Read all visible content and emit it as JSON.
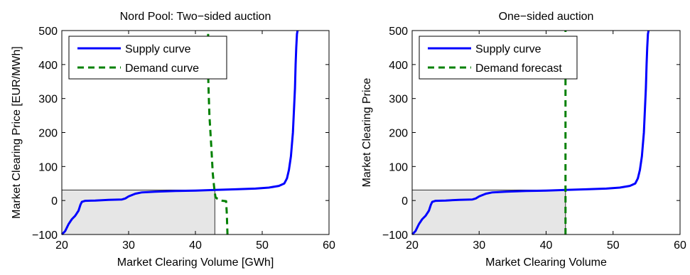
{
  "chart_data": [
    {
      "type": "line",
      "title": "Nord Pool: Two−sided auction",
      "xlabel": "Market Clearing Volume [GWh]",
      "ylabel": "Market Clearing Price [EUR/MWh]",
      "xlim": [
        20,
        60
      ],
      "ylim": [
        -100,
        500
      ],
      "xticks": [
        20,
        30,
        40,
        50,
        60
      ],
      "yticks": [
        -100,
        0,
        100,
        200,
        300,
        400,
        500
      ],
      "xtick_labels": [
        "20",
        "30",
        "40",
        "50",
        "60"
      ],
      "ytick_labels": [
        "−100",
        "0",
        "100",
        "200",
        "300",
        "400",
        "500"
      ],
      "legend_position": "top-left",
      "grid": false,
      "clearing_point": {
        "volume": 42.9,
        "price": 31
      },
      "series": [
        {
          "name": "Supply curve",
          "color": "#0000ff",
          "style": "solid",
          "x": [
            20.0,
            20.5,
            21.0,
            21.5,
            22.0,
            22.5,
            22.8,
            23.0,
            23.5,
            25.0,
            27.0,
            29.0,
            29.5,
            30.0,
            31.0,
            32.0,
            34.0,
            37.0,
            40.0,
            43.0,
            46.0,
            49.0,
            51.0,
            52.5,
            53.3,
            53.7,
            54.0,
            54.3,
            54.6,
            54.9,
            55.0,
            55.1,
            55.2,
            55.3
          ],
          "y": [
            -100,
            -90,
            -70,
            -55,
            -45,
            -30,
            -12,
            -4,
            -1,
            0,
            2,
            3,
            6,
            12,
            20,
            24,
            26,
            28,
            29,
            31,
            33,
            35,
            38,
            43,
            50,
            65,
            90,
            130,
            200,
            330,
            400,
            450,
            490,
            500
          ]
        },
        {
          "name": "Demand curve",
          "color": "#008000",
          "style": "dashed",
          "x": [
            41.9,
            41.9,
            41.95,
            42.1,
            42.4,
            42.6,
            42.8,
            43.0,
            43.3,
            43.8,
            44.6,
            44.7,
            44.8
          ],
          "y": [
            490,
            380,
            340,
            250,
            150,
            80,
            40,
            10,
            5,
            0,
            -2,
            -40,
            -100
          ]
        }
      ]
    },
    {
      "type": "line",
      "title": "One−sided auction",
      "xlabel": "Market Clearing Volume",
      "ylabel": "Market Clearing Price",
      "xlim": [
        20,
        60
      ],
      "ylim": [
        -100,
        500
      ],
      "xticks": [
        20,
        30,
        40,
        50,
        60
      ],
      "yticks": [
        -100,
        0,
        100,
        200,
        300,
        400,
        500
      ],
      "xtick_labels": [
        "20",
        "30",
        "40",
        "50",
        "60"
      ],
      "ytick_labels": [
        "−100",
        "0",
        "100",
        "200",
        "300",
        "400",
        "500"
      ],
      "legend_position": "top-left",
      "grid": false,
      "clearing_point": {
        "volume": 42.9,
        "price": 31
      },
      "series": [
        {
          "name": "Supply curve",
          "color": "#0000ff",
          "style": "solid",
          "x": [
            20.0,
            20.5,
            21.0,
            21.5,
            22.0,
            22.5,
            22.8,
            23.0,
            23.5,
            25.0,
            27.0,
            29.0,
            29.5,
            30.0,
            31.0,
            32.0,
            34.0,
            37.0,
            40.0,
            43.0,
            46.0,
            49.0,
            51.0,
            52.5,
            53.3,
            53.7,
            54.0,
            54.3,
            54.6,
            54.9,
            55.0,
            55.1,
            55.2,
            55.3
          ],
          "y": [
            -100,
            -90,
            -70,
            -55,
            -45,
            -30,
            -12,
            -4,
            -1,
            0,
            2,
            3,
            6,
            12,
            20,
            24,
            26,
            28,
            29,
            31,
            33,
            35,
            38,
            43,
            50,
            65,
            90,
            130,
            200,
            330,
            400,
            450,
            490,
            500
          ]
        },
        {
          "name": "Demand forecast",
          "color": "#008000",
          "style": "dashed",
          "x": [
            42.9,
            42.9
          ],
          "y": [
            -100,
            500
          ]
        }
      ]
    }
  ]
}
